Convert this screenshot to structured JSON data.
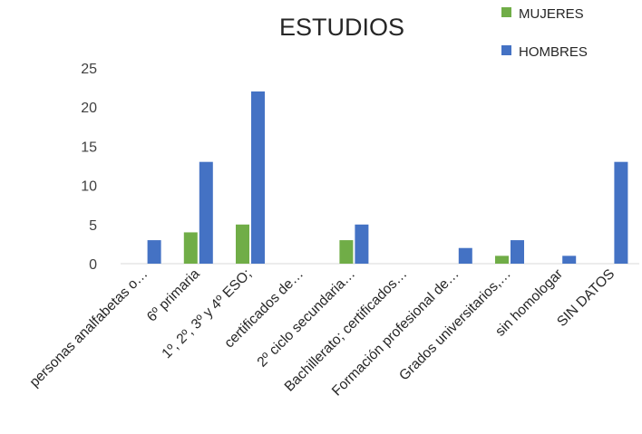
{
  "chart_data": {
    "type": "bar",
    "title": "ESTUDIOS",
    "categories": [
      "personas analfabetas o…",
      "6º primaria",
      "1º, 2º, 3º y 4º ESO;",
      "certificados de…",
      "2º ciclo secundaria…",
      "Bachillerato; certificados…",
      "Formación profesional de…",
      "Grados universitarios,…",
      "sin homologar",
      "SIN DATOS"
    ],
    "series": [
      {
        "name": "MUJERES",
        "color": "#70AD47",
        "values": [
          0,
          4,
          5,
          0,
          3,
          0,
          0,
          1,
          0,
          0
        ]
      },
      {
        "name": "HOMBRES",
        "color": "#4472C4",
        "values": [
          3,
          13,
          22,
          0,
          5,
          0,
          2,
          3,
          1,
          13
        ]
      }
    ],
    "yticks": [
      0,
      5,
      10,
      15,
      20,
      25
    ],
    "ylim": [
      0,
      25
    ],
    "xlabel": "",
    "ylabel": "",
    "grid": false,
    "legend_position": "top-right"
  }
}
